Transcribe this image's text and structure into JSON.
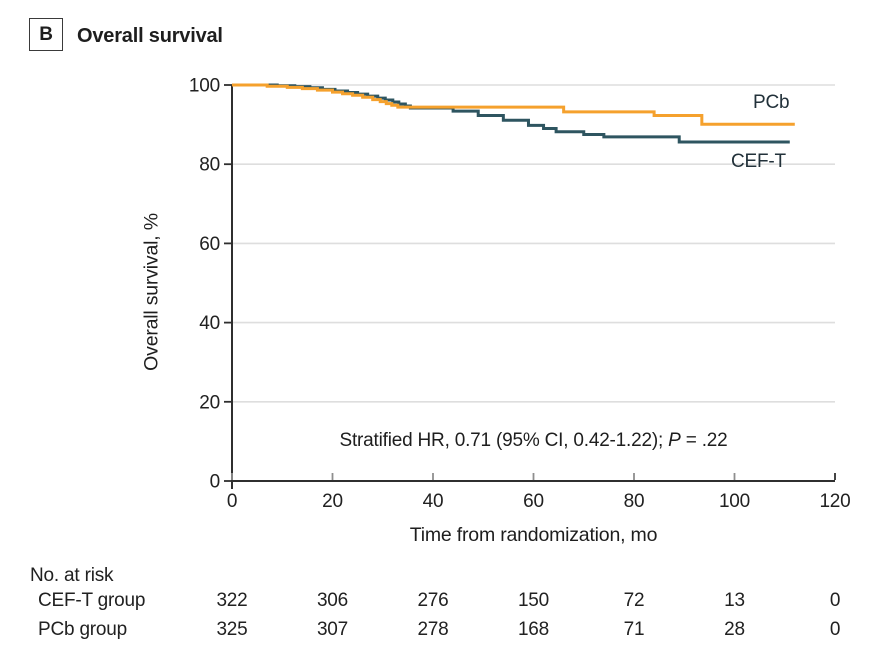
{
  "figure": {
    "panel_label": "B",
    "title": "Overall survival"
  },
  "chart_data": {
    "type": "line",
    "subtype": "kaplan-meier-step",
    "title": "Overall survival",
    "xlabel": "Time from randomization, mo",
    "ylabel": "Overall survival, %",
    "xlim": [
      0,
      120
    ],
    "ylim": [
      0,
      100
    ],
    "x_ticks": [
      0,
      20,
      40,
      60,
      80,
      100,
      120
    ],
    "y_ticks": [
      0,
      20,
      40,
      60,
      80,
      100
    ],
    "grid": "horizontal",
    "legend_position": "curve-end-labels",
    "colors": {
      "cef_t": "#2E5560",
      "pcb": "#F5A12D",
      "gridline": "#DEDEDE",
      "axis": "#2F2F2F"
    },
    "annotation": {
      "prefix": "Stratified HR, 0.71 (95% CI, 0.42-1.22); ",
      "p_label": "P",
      "p_rest": " = .22"
    },
    "series": [
      {
        "name": "CEF-T",
        "color": "#2E5560",
        "points_mo_pct": [
          [
            0,
            100
          ],
          [
            9,
            99.8
          ],
          [
            12.5,
            99.6
          ],
          [
            15.5,
            99.3
          ],
          [
            18,
            98.9
          ],
          [
            20.5,
            98.5
          ],
          [
            23,
            98.1
          ],
          [
            25,
            97.7
          ],
          [
            27,
            97.2
          ],
          [
            29,
            96.7
          ],
          [
            30.5,
            96.2
          ],
          [
            32,
            95.7
          ],
          [
            33.2,
            95.2
          ],
          [
            34.5,
            94.7
          ],
          [
            35.5,
            94.2
          ],
          [
            44,
            93.4
          ],
          [
            49,
            92.3
          ],
          [
            54,
            91.1
          ],
          [
            59,
            89.8
          ],
          [
            62,
            89.0
          ],
          [
            64.5,
            88.2
          ],
          [
            70,
            87.5
          ],
          [
            74,
            86.9
          ],
          [
            89,
            85.6
          ],
          [
            111,
            85.6
          ]
        ]
      },
      {
        "name": "PCb",
        "color": "#F5A12D",
        "points_mo_pct": [
          [
            0,
            100
          ],
          [
            7,
            99.7
          ],
          [
            11,
            99.4
          ],
          [
            14,
            99.1
          ],
          [
            17,
            98.7
          ],
          [
            20,
            98.2
          ],
          [
            22,
            97.8
          ],
          [
            24,
            97.4
          ],
          [
            26,
            96.9
          ],
          [
            28,
            96.3
          ],
          [
            29.5,
            95.8
          ],
          [
            30.7,
            95.3
          ],
          [
            31.8,
            94.9
          ],
          [
            33,
            94.4
          ],
          [
            66,
            93.2
          ],
          [
            84,
            92.3
          ],
          [
            93.5,
            90.1
          ],
          [
            112,
            90.1
          ]
        ]
      }
    ],
    "at_risk": {
      "header": "No. at risk",
      "time_points": [
        0,
        20,
        40,
        60,
        80,
        100,
        120
      ],
      "rows": [
        {
          "label": "CEF-T group",
          "values": [
            "322",
            "306",
            "276",
            "150",
            "72",
            "13",
            "0"
          ]
        },
        {
          "label": "PCb group",
          "values": [
            "325",
            "307",
            "278",
            "168",
            "71",
            "28",
            "0"
          ]
        }
      ]
    }
  }
}
